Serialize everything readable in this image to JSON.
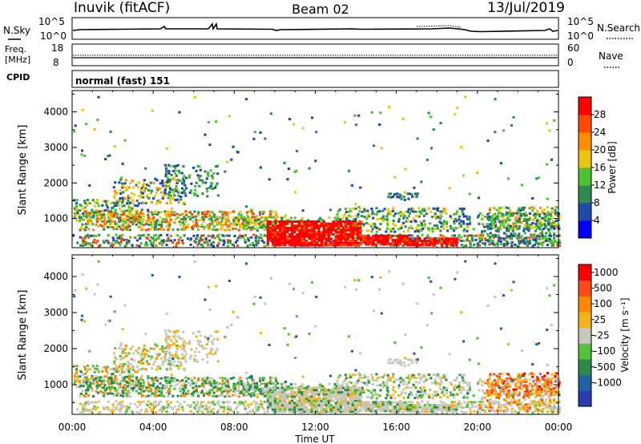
{
  "header": {
    "station": "Inuvik (fitACF)",
    "beam": "Beam 02",
    "date": "13/Jul/2019"
  },
  "panels": {
    "nsky_label": "N.Sky",
    "nsky_ticks": [
      "10^5",
      "10^0"
    ],
    "nsearch_label": "N.Search",
    "nsearch_ticks": [
      "10^5",
      "10^0"
    ],
    "freq_label": "Freq.",
    "freq_unit": "[MHz]",
    "freq_ticks": [
      "18",
      "8"
    ],
    "nave_label": "Nave",
    "nave_ticks": [
      "60",
      "0"
    ],
    "cpid_label": "CPID",
    "cpid_text": "normal (fast) 151"
  },
  "chart_data": [
    {
      "type": "heatmap",
      "name": "power",
      "ylabel": "Slant Range [km]",
      "yticks": [
        1000,
        2000,
        3000,
        4000
      ],
      "ylim": [
        180,
        4600
      ],
      "colorbar_label": "Power [dB]",
      "colorbar_ticks": [
        "28",
        "24",
        "20",
        "16",
        "12",
        "8",
        "4"
      ],
      "colors": [
        "#0000ff",
        "#1f4aa8",
        "#2f8a4f",
        "#4cc232",
        "#e9c60d",
        "#ff8d00",
        "#ff4a00",
        "#ff0000"
      ]
    },
    {
      "type": "heatmap",
      "name": "velocity",
      "ylabel": "Slant Range [km]",
      "yticks": [
        1000,
        2000,
        3000,
        4000
      ],
      "ylim": [
        180,
        4600
      ],
      "colorbar_label": "Velocity [m s⁻¹]",
      "colorbar_ticks": [
        "1000",
        "500",
        "100",
        "25",
        "-25",
        "-100",
        "-500",
        "-1000"
      ],
      "colors": [
        "#2a3cb0",
        "#1f64a0",
        "#2b8a4a",
        "#54c23a",
        "#c7c7bd",
        "#f3b31a",
        "#ff8a00",
        "#ff4a1a",
        "#ff0000"
      ]
    }
  ],
  "x_axis": {
    "label": "Time UT",
    "ticks": [
      "00:00",
      "04:00",
      "08:00",
      "12:00",
      "16:00",
      "20:00",
      "00:00"
    ]
  }
}
